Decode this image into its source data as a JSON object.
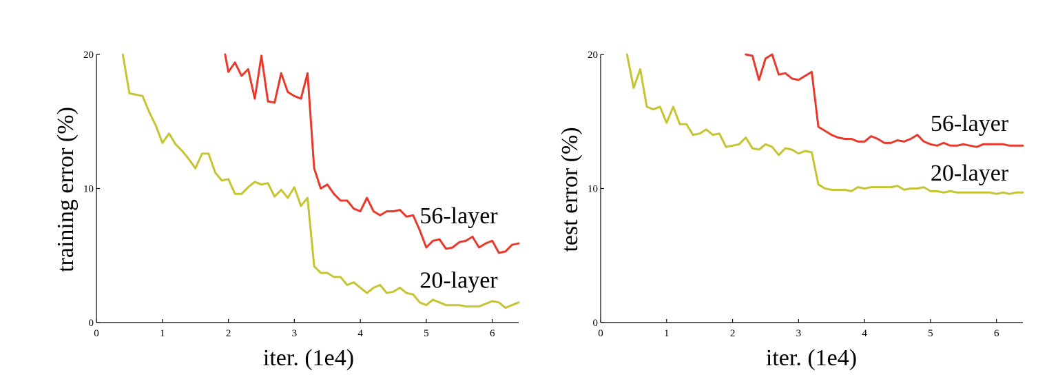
{
  "colors": {
    "red": "#e8392b",
    "yellow": "#c6c531"
  },
  "chart_data": [
    {
      "type": "line",
      "title": "",
      "xlabel": "iter. (1e4)",
      "ylabel": "training error (%)",
      "xlim": [
        0,
        6.4
      ],
      "ylim": [
        0,
        20
      ],
      "xticks": [
        0,
        1,
        2,
        3,
        4,
        5,
        6
      ],
      "yticks": [
        0,
        10,
        20
      ],
      "grid": false,
      "series": [
        {
          "name": "56-layer",
          "color": "red",
          "x": [
            1.95,
            2.0,
            2.1,
            2.2,
            2.3,
            2.4,
            2.5,
            2.6,
            2.7,
            2.8,
            2.9,
            3.0,
            3.1,
            3.2,
            3.3,
            3.4,
            3.5,
            3.6,
            3.7,
            3.8,
            3.9,
            4.0,
            4.1,
            4.2,
            4.3,
            4.4,
            4.5,
            4.6,
            4.7,
            4.8,
            4.9,
            5.0,
            5.1,
            5.2,
            5.3,
            5.4,
            5.5,
            5.6,
            5.7,
            5.8,
            5.9,
            6.0,
            6.1,
            6.2,
            6.3,
            6.4
          ],
          "values": [
            20.0,
            18.7,
            19.4,
            18.4,
            18.9,
            16.7,
            19.9,
            16.5,
            16.4,
            18.6,
            17.2,
            16.9,
            16.7,
            18.6,
            11.5,
            10.0,
            10.3,
            9.6,
            9.1,
            9.1,
            8.5,
            8.3,
            9.3,
            8.3,
            8.0,
            8.3,
            8.3,
            8.4,
            7.9,
            8.0,
            6.9,
            5.6,
            6.1,
            6.2,
            5.5,
            5.6,
            6.0,
            6.1,
            6.4,
            5.6,
            5.9,
            6.1,
            5.2,
            5.3,
            5.8,
            5.9
          ]
        },
        {
          "name": "20-layer",
          "color": "yellow",
          "x": [
            0.4,
            0.5,
            0.6,
            0.7,
            0.8,
            0.9,
            1.0,
            1.1,
            1.2,
            1.3,
            1.4,
            1.5,
            1.6,
            1.7,
            1.8,
            1.9,
            2.0,
            2.1,
            2.2,
            2.3,
            2.4,
            2.5,
            2.6,
            2.7,
            2.8,
            2.9,
            3.0,
            3.1,
            3.2,
            3.3,
            3.4,
            3.5,
            3.6,
            3.7,
            3.8,
            3.9,
            4.0,
            4.1,
            4.2,
            4.3,
            4.4,
            4.5,
            4.6,
            4.7,
            4.8,
            4.9,
            5.0,
            5.1,
            5.2,
            5.3,
            5.4,
            5.5,
            5.6,
            5.7,
            5.8,
            5.9,
            6.0,
            6.1,
            6.2,
            6.3,
            6.4
          ],
          "values": [
            20.0,
            17.1,
            17.0,
            16.9,
            15.7,
            14.7,
            13.4,
            14.1,
            13.3,
            12.8,
            12.2,
            11.5,
            12.6,
            12.6,
            11.2,
            10.6,
            10.7,
            9.6,
            9.6,
            10.1,
            10.5,
            10.3,
            10.4,
            9.4,
            9.9,
            9.3,
            10.1,
            8.7,
            9.3,
            4.2,
            3.7,
            3.7,
            3.4,
            3.4,
            2.8,
            3.0,
            2.6,
            2.2,
            2.6,
            2.8,
            2.2,
            2.3,
            2.6,
            2.2,
            2.1,
            1.5,
            1.3,
            1.7,
            1.5,
            1.3,
            1.3,
            1.3,
            1.2,
            1.2,
            1.2,
            1.4,
            1.6,
            1.5,
            1.1,
            1.3,
            1.5
          ]
        }
      ],
      "annotations": [
        {
          "text": "56-layer",
          "x": 4.9,
          "y": 7.4
        },
        {
          "text": "20-layer",
          "x": 4.9,
          "y": 2.6
        }
      ]
    },
    {
      "type": "line",
      "title": "",
      "xlabel": "iter. (1e4)",
      "ylabel": "test error (%)",
      "xlim": [
        0,
        6.4
      ],
      "ylim": [
        0,
        20
      ],
      "xticks": [
        0,
        1,
        2,
        3,
        4,
        5,
        6
      ],
      "yticks": [
        0,
        10,
        20
      ],
      "grid": false,
      "series": [
        {
          "name": "56-layer",
          "color": "red",
          "x": [
            2.2,
            2.3,
            2.4,
            2.5,
            2.6,
            2.7,
            2.8,
            2.9,
            3.0,
            3.1,
            3.2,
            3.3,
            3.4,
            3.5,
            3.6,
            3.7,
            3.8,
            3.9,
            4.0,
            4.1,
            4.2,
            4.3,
            4.4,
            4.5,
            4.6,
            4.7,
            4.8,
            4.9,
            5.0,
            5.1,
            5.2,
            5.3,
            5.4,
            5.5,
            5.6,
            5.7,
            5.8,
            5.9,
            6.0,
            6.1,
            6.2,
            6.3,
            6.4
          ],
          "values": [
            20.0,
            19.9,
            18.1,
            19.7,
            20.0,
            18.5,
            18.6,
            18.2,
            18.1,
            18.4,
            18.7,
            14.6,
            14.3,
            14.0,
            13.8,
            13.7,
            13.7,
            13.5,
            13.5,
            13.9,
            13.7,
            13.4,
            13.4,
            13.6,
            13.5,
            13.7,
            14.0,
            13.5,
            13.3,
            13.2,
            13.4,
            13.2,
            13.2,
            13.3,
            13.2,
            13.1,
            13.3,
            13.3,
            13.3,
            13.3,
            13.2,
            13.2,
            13.2
          ]
        },
        {
          "name": "20-layer",
          "color": "yellow",
          "x": [
            0.4,
            0.5,
            0.6,
            0.7,
            0.8,
            0.9,
            1.0,
            1.1,
            1.2,
            1.3,
            1.4,
            1.5,
            1.6,
            1.7,
            1.8,
            1.9,
            2.0,
            2.1,
            2.2,
            2.3,
            2.4,
            2.5,
            2.6,
            2.7,
            2.8,
            2.9,
            3.0,
            3.1,
            3.2,
            3.3,
            3.4,
            3.5,
            3.6,
            3.7,
            3.8,
            3.9,
            4.0,
            4.1,
            4.2,
            4.3,
            4.4,
            4.5,
            4.6,
            4.7,
            4.8,
            4.9,
            5.0,
            5.1,
            5.2,
            5.3,
            5.4,
            5.5,
            5.6,
            5.7,
            5.8,
            5.9,
            6.0,
            6.1,
            6.2,
            6.3,
            6.4
          ],
          "values": [
            20.0,
            17.5,
            18.9,
            16.1,
            15.9,
            16.1,
            14.9,
            16.1,
            14.8,
            14.8,
            14.0,
            14.1,
            14.4,
            14.0,
            14.1,
            13.1,
            13.2,
            13.3,
            13.8,
            13.0,
            12.9,
            13.3,
            13.1,
            12.5,
            13.0,
            12.9,
            12.6,
            12.8,
            12.7,
            10.3,
            10.0,
            9.9,
            9.9,
            9.9,
            9.8,
            10.1,
            10.0,
            10.1,
            10.1,
            10.1,
            10.1,
            10.2,
            9.9,
            10.0,
            10.0,
            10.1,
            9.8,
            9.8,
            9.7,
            9.8,
            9.7,
            9.7,
            9.7,
            9.7,
            9.7,
            9.7,
            9.6,
            9.7,
            9.6,
            9.7,
            9.7
          ]
        }
      ],
      "annotations": [
        {
          "text": "56-layer",
          "x": 5.0,
          "y": 14.3
        },
        {
          "text": "20-layer",
          "x": 5.0,
          "y": 10.6
        }
      ]
    }
  ]
}
